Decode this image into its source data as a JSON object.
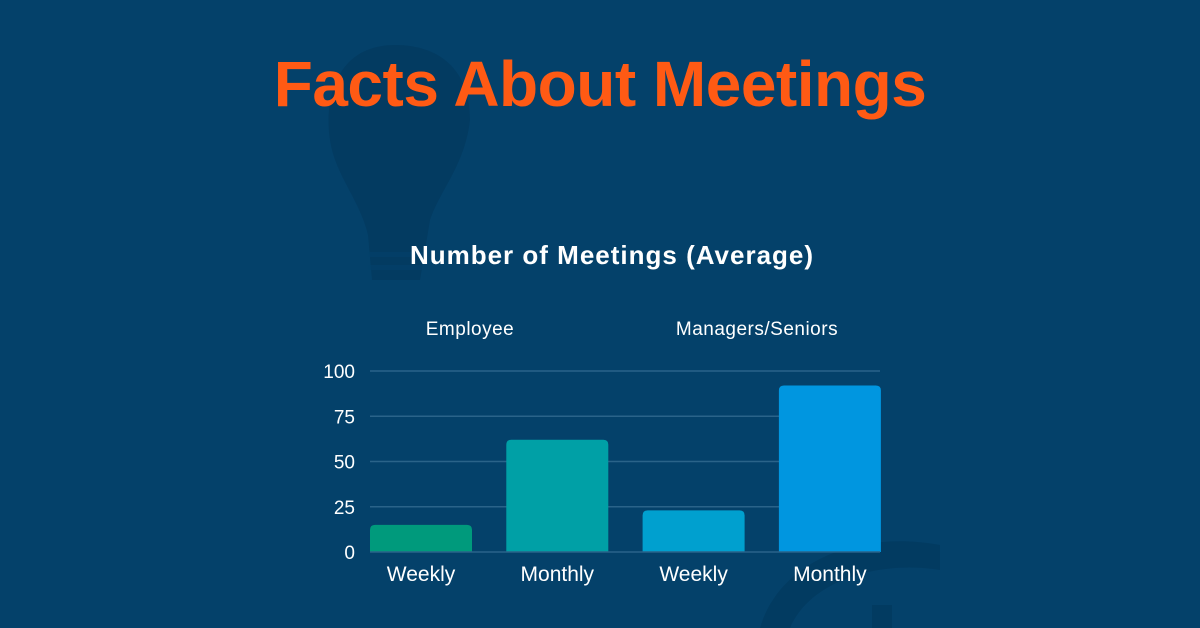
{
  "title": "Facts About Meetings",
  "chart_data": {
    "type": "bar",
    "title": "Number of Meetings (Average)",
    "groups": [
      "Employee",
      "Managers/Seniors"
    ],
    "categories": [
      "Weekly",
      "Monthly",
      "Weekly",
      "Monthly"
    ],
    "values": [
      15,
      62,
      23,
      92
    ],
    "colors": [
      "#009a7c",
      "#00a0a6",
      "#00a0cf",
      "#0096e0"
    ],
    "yticks": [
      0,
      25,
      50,
      75,
      100
    ],
    "ylim": [
      0,
      100
    ],
    "grid": true,
    "xlabel": "",
    "ylabel": ""
  },
  "colors": {
    "background": "#04416a",
    "title": "#ff5a14",
    "gridline": "#2a6389"
  }
}
